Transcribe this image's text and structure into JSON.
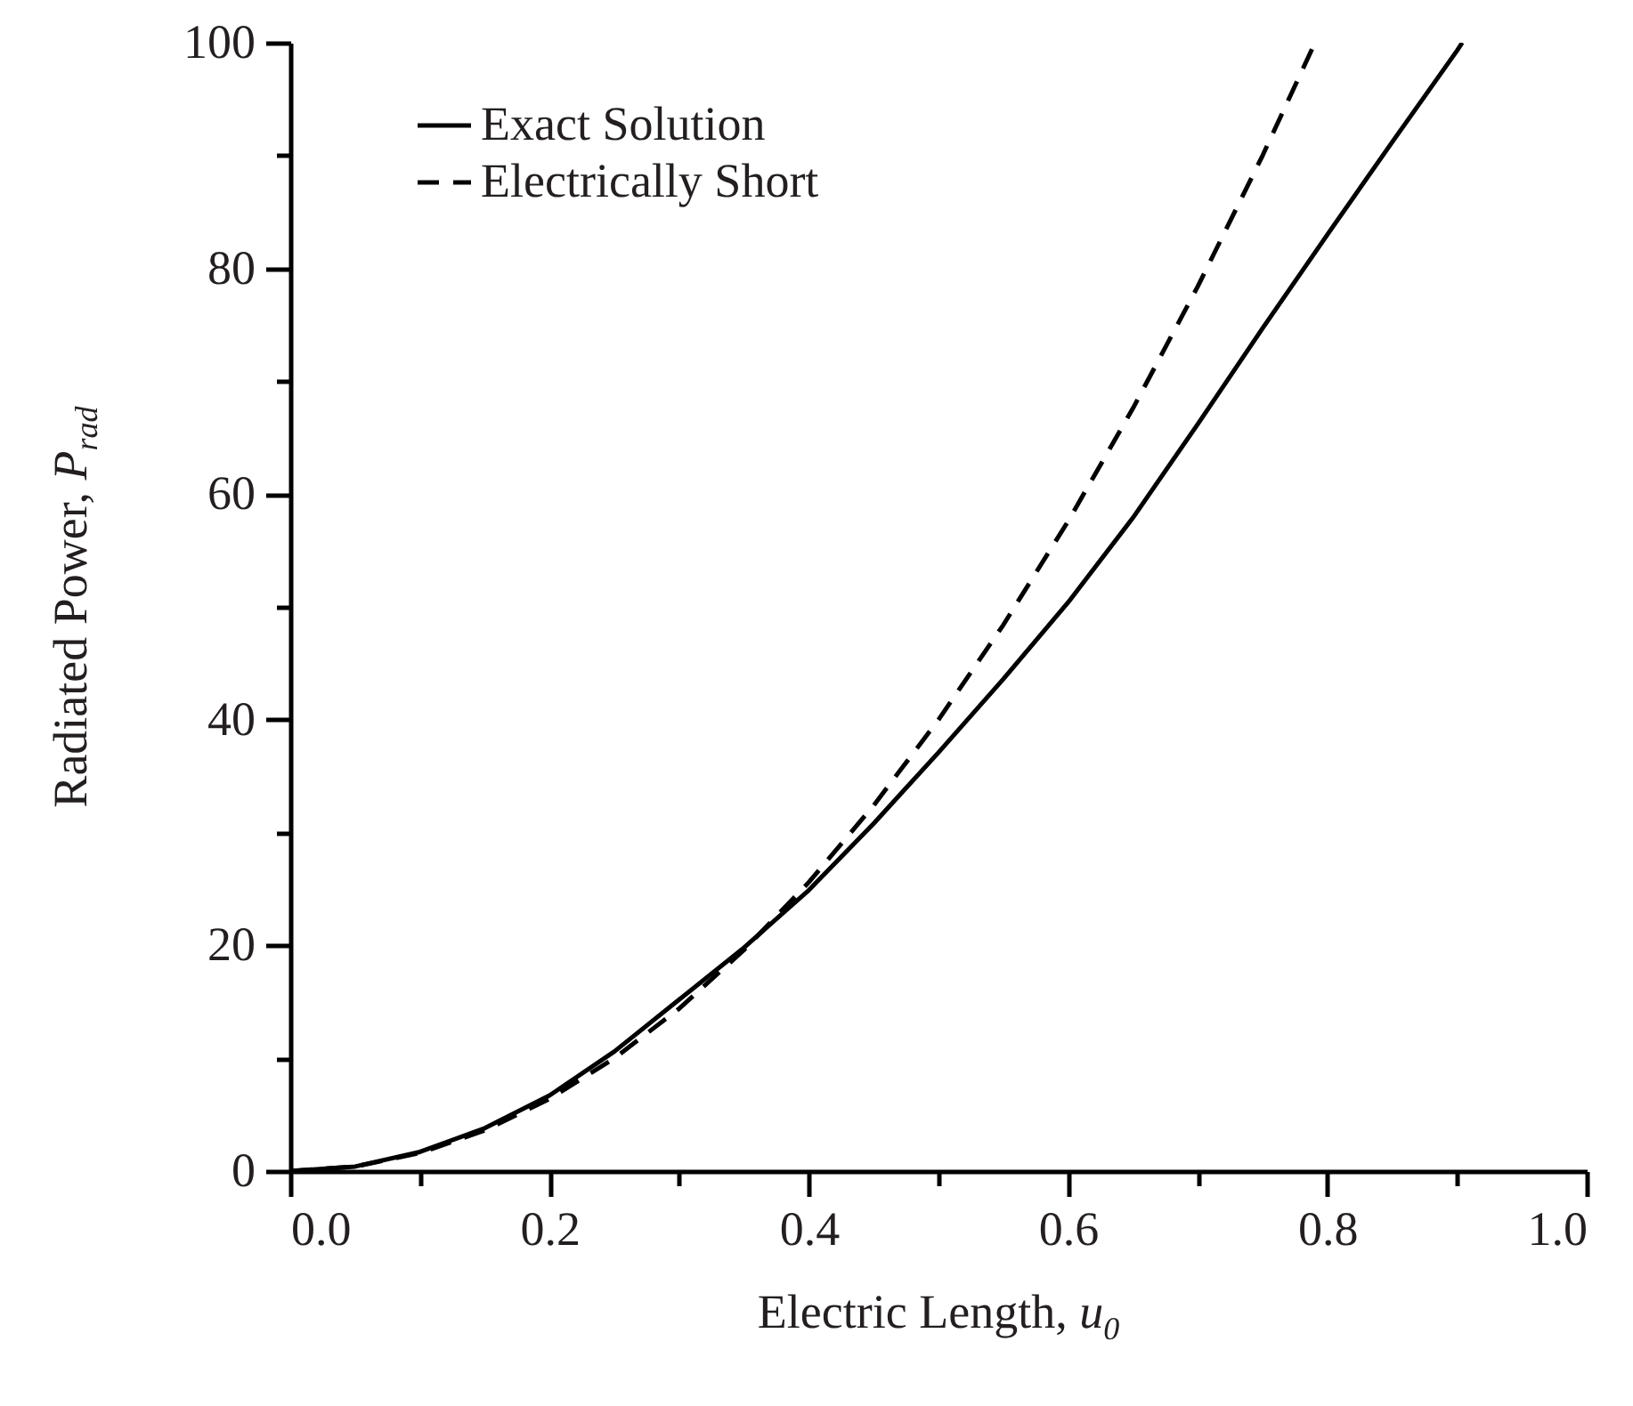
{
  "chart_data": {
    "type": "line",
    "xlabel": "Electric Length, u$_{0}$",
    "ylabel": "Radiated Power, P$_{rad}$",
    "xlim": [
      0,
      1
    ],
    "ylim": [
      0,
      100
    ],
    "xticks": [
      {
        "value": 0,
        "label": "0.0"
      },
      {
        "value": 0.1,
        "label": null
      },
      {
        "value": 0.2,
        "label": "0.2"
      },
      {
        "value": 0.3,
        "label": null
      },
      {
        "value": 0.4,
        "label": "0.4"
      },
      {
        "value": 0.5,
        "label": null
      },
      {
        "value": 0.6,
        "label": "0.6"
      },
      {
        "value": 0.7,
        "label": null
      },
      {
        "value": 0.8,
        "label": "0.8"
      },
      {
        "value": 0.9,
        "label": null
      },
      {
        "value": 1,
        "label": "1.0"
      }
    ],
    "yticks": [
      0,
      {
        "value": 10,
        "label": null
      },
      20,
      {
        "value": 30,
        "label": null
      },
      40,
      {
        "value": 50,
        "label": null
      },
      60,
      {
        "value": 70,
        "label": null
      },
      80,
      {
        "value": 90,
        "label": null
      },
      100
    ],
    "legend": "top left",
    "series": [
      {
        "name": "Exact Solution",
        "color": "#000000",
        "line_style": "solid",
        "x": [
          0,
          0.05,
          0.1,
          0.15,
          0.2,
          0.25,
          0.3,
          0.35,
          0.4,
          0.45,
          0.5,
          0.55,
          0.6,
          0.65,
          0.7,
          0.75,
          0.8,
          0.85,
          0.9,
          0.904
        ],
        "values": [
          0,
          0.4,
          1.7,
          3.8,
          6.7,
          10.6,
          15.2,
          19.8,
          24.9,
          30.8,
          37.1,
          43.6,
          50.4,
          57.9,
          66.2,
          74.7,
          83,
          91.2,
          99.3,
          100
        ]
      },
      {
        "name": "Electrically Short",
        "color": "#000000",
        "line_style": "dashed",
        "x": [
          0,
          0.05,
          0.1,
          0.15,
          0.2,
          0.25,
          0.3,
          0.35,
          0.4,
          0.45,
          0.5,
          0.55,
          0.6,
          0.65,
          0.7,
          0.75,
          0.79
        ],
        "values": [
          0,
          0.4,
          1.6,
          3.6,
          6.4,
          10,
          14.4,
          19.6,
          25.6,
          32.4,
          40,
          48.4,
          57.6,
          67.6,
          78.4,
          90,
          99.9
        ]
      }
    ]
  }
}
